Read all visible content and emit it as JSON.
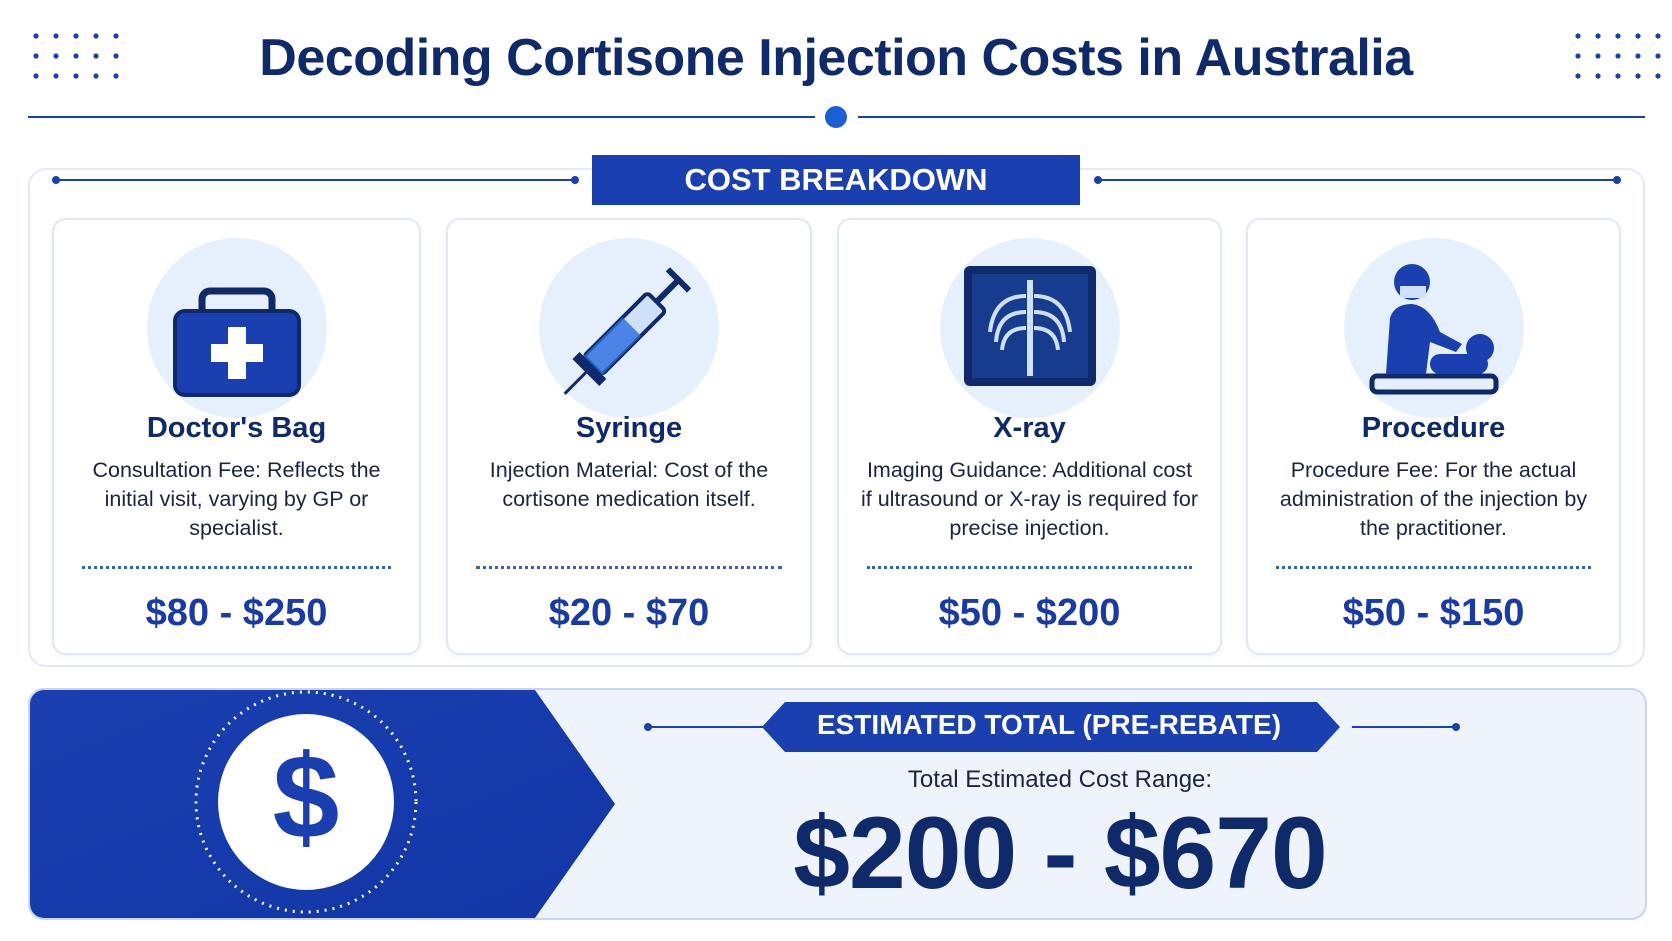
{
  "header": {
    "title": "Decoding Cortisone Injection Costs in Australia"
  },
  "breakdown": {
    "heading": "COST BREAKDOWN",
    "cards": [
      {
        "title": "Doctor's Bag",
        "description": "Consultation Fee: Reflects the initial visit, varying by GP or specialist.",
        "price": "$80 - $250"
      },
      {
        "title": "Syringe",
        "description": "Injection Material: Cost of the cortisone medication itself.",
        "price": "$20 - $70"
      },
      {
        "title": "X-ray",
        "description": "Imaging Guidance: Additional cost if ultrasound or X-ray is required for precise injection.",
        "price": "$50 - $200"
      },
      {
        "title": "Procedure",
        "description": "Procedure Fee: For the actual administration of the injection by the practitioner.",
        "price": "$50 - $150"
      }
    ]
  },
  "total": {
    "heading": "ESTIMATED TOTAL (PRE-REBATE)",
    "label": "Total Estimated Cost Range:",
    "value": "$200 - $670"
  }
}
